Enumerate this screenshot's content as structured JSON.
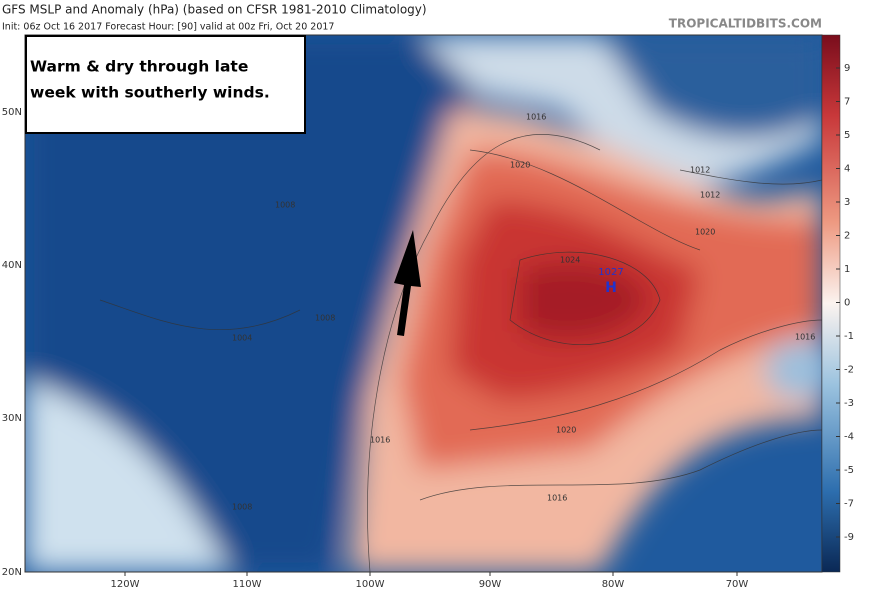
{
  "header": {
    "title": "GFS MSLP and Anomaly (hPa) (based on CFSR 1981-2010 Climatology)",
    "subtitle": "Init: 06z Oct 16 2017   Forecast Hour: [90]   valid at 00z Fri, Oct 20 2017",
    "watermark": "TROPICALTIDBITS.COM"
  },
  "annotation": {
    "lines": [
      "Warm & dry through late",
      "week with southerly winds."
    ]
  },
  "colorbar": {
    "ticks": [
      9,
      7,
      5,
      4,
      3,
      2,
      1,
      0,
      -1,
      -2,
      -3,
      -4,
      -5,
      -7,
      -9
    ]
  },
  "latitude_labels": [
    "50N",
    "40N",
    "30N",
    "20N"
  ],
  "longitude_labels": [
    "120W",
    "110W",
    "100W",
    "90W",
    "80W",
    "70W"
  ],
  "isobar_labels": [
    "1016",
    "1020",
    "1024",
    "1020",
    "1016",
    "1016",
    "1012",
    "1012",
    "1020",
    "1016",
    "1008",
    "1004",
    "1008",
    "1008"
  ],
  "high": {
    "pressure": "1027",
    "symbol": "H"
  }
}
